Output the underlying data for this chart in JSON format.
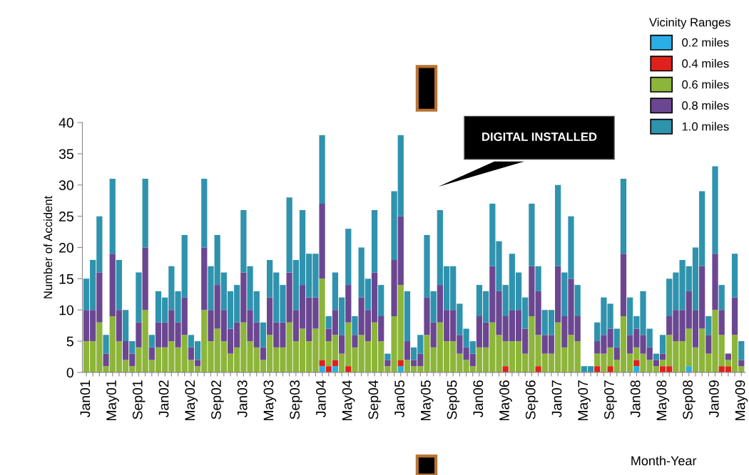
{
  "chart_data": {
    "type": "bar",
    "stacked": true,
    "categories": [
      "Jan01",
      null,
      null,
      null,
      "May01",
      null,
      null,
      null,
      "Sep01",
      null,
      null,
      null,
      "Jan02",
      null,
      null,
      null,
      "May02",
      null,
      null,
      null,
      "Sep02",
      null,
      null,
      null,
      "Jan03",
      null,
      null,
      null,
      "May03",
      null,
      null,
      null,
      "Sep03",
      null,
      null,
      null,
      "Jan04",
      null,
      null,
      null,
      "May04",
      null,
      null,
      null,
      "Sep04",
      null,
      null,
      null,
      "Jan05",
      null,
      null,
      null,
      "May05",
      null,
      null,
      null,
      "Sep05",
      null,
      null,
      null,
      "Jan06",
      null,
      null,
      null,
      "May06",
      null,
      null,
      null,
      "Sep06",
      null,
      null,
      null,
      "Jan07",
      null,
      null,
      null,
      "May07",
      null,
      null,
      null,
      "Sep07",
      null,
      null,
      null,
      "Jan08",
      null,
      null,
      null,
      "May08",
      null,
      null,
      null,
      "Sep08",
      null,
      null,
      null,
      "Jan09",
      null,
      null,
      null,
      "May09"
    ],
    "series": [
      {
        "name": "0.2 miles",
        "color": "#29aee6",
        "values": [
          0,
          0,
          0,
          0,
          0,
          0,
          0,
          0,
          0,
          0,
          0,
          0,
          0,
          0,
          0,
          0,
          0,
          0,
          0,
          0,
          0,
          0,
          0,
          0,
          0,
          0,
          0,
          0,
          0,
          0,
          0,
          0,
          0,
          0,
          0,
          0,
          1,
          0,
          1,
          0,
          0,
          0,
          0,
          0,
          0,
          0,
          0,
          0,
          1,
          0,
          0,
          0,
          0,
          0,
          0,
          0,
          0,
          0,
          0,
          0,
          0,
          0,
          0,
          0,
          0,
          0,
          0,
          0,
          0,
          0,
          0,
          0,
          0,
          0,
          0,
          0,
          0,
          0,
          0,
          0,
          0,
          0,
          0,
          0,
          1,
          0,
          0,
          0,
          0,
          0,
          0,
          0,
          1,
          0,
          0,
          0,
          0,
          0,
          0,
          0,
          0
        ]
      },
      {
        "name": "0.4 miles",
        "color": "#e0201c",
        "values": [
          0,
          0,
          0,
          0,
          0,
          0,
          0,
          0,
          0,
          0,
          0,
          0,
          0,
          0,
          0,
          0,
          0,
          0,
          0,
          0,
          0,
          0,
          0,
          0,
          0,
          0,
          0,
          0,
          0,
          0,
          0,
          0,
          0,
          0,
          0,
          0,
          1,
          1,
          1,
          0,
          1,
          0,
          0,
          0,
          0,
          0,
          0,
          0,
          1,
          0,
          0,
          0,
          0,
          0,
          0,
          0,
          0,
          0,
          0,
          0,
          0,
          0,
          0,
          0,
          1,
          0,
          0,
          0,
          0,
          1,
          0,
          0,
          0,
          0,
          0,
          0,
          0,
          0,
          1,
          0,
          1,
          0,
          0,
          0,
          1,
          0,
          0,
          0,
          1,
          1,
          0,
          0,
          0,
          0,
          0,
          0,
          0,
          1,
          1,
          0,
          0
        ]
      },
      {
        "name": "0.6 miles",
        "color": "#8db53a",
        "values": [
          5,
          5,
          8,
          1,
          9,
          5,
          2,
          1,
          4,
          10,
          2,
          4,
          4,
          5,
          4,
          6,
          2,
          1,
          10,
          5,
          7,
          5,
          3,
          4,
          8,
          5,
          4,
          2,
          6,
          4,
          4,
          8,
          5,
          7,
          5,
          7,
          13,
          4,
          4,
          3,
          7,
          4,
          6,
          5,
          8,
          5,
          1,
          9,
          12,
          2,
          1,
          1,
          6,
          4,
          8,
          5,
          5,
          3,
          2,
          1,
          4,
          4,
          8,
          6,
          4,
          5,
          5,
          3,
          9,
          5,
          3,
          3,
          8,
          4,
          6,
          5,
          0,
          0,
          2,
          3,
          3,
          2,
          9,
          3,
          2,
          3,
          2,
          1,
          1,
          5,
          5,
          5,
          6,
          4,
          7,
          3,
          10,
          5,
          1,
          6,
          1
        ]
      },
      {
        "name": "0.8 miles",
        "color": "#6b4791",
        "values": [
          5,
          5,
          8,
          2,
          10,
          5,
          3,
          2,
          4,
          10,
          2,
          4,
          4,
          5,
          4,
          6,
          2,
          1,
          10,
          5,
          7,
          5,
          4,
          4,
          8,
          5,
          4,
          2,
          6,
          4,
          4,
          8,
          5,
          7,
          7,
          5,
          12,
          2,
          4,
          3,
          6,
          2,
          6,
          5,
          8,
          4,
          1,
          9,
          11,
          3,
          1,
          2,
          6,
          4,
          6,
          5,
          5,
          3,
          2,
          2,
          5,
          4,
          9,
          7,
          4,
          5,
          5,
          4,
          8,
          7,
          3,
          3,
          9,
          5,
          9,
          4,
          0,
          0,
          2,
          3,
          3,
          2,
          10,
          3,
          3,
          3,
          2,
          1,
          1,
          3,
          5,
          5,
          6,
          6,
          10,
          3,
          9,
          4,
          1,
          6,
          1
        ]
      },
      {
        "name": "1.0 miles",
        "color": "#2f93ae",
        "values": [
          5,
          8,
          9,
          3,
          12,
          8,
          5,
          2,
          8,
          11,
          2,
          5,
          4,
          7,
          5,
          10,
          2,
          3,
          11,
          7,
          8,
          6,
          6,
          6,
          10,
          7,
          5,
          4,
          6,
          8,
          6,
          12,
          8,
          12,
          7,
          7,
          11,
          2,
          6,
          6,
          9,
          3,
          8,
          5,
          10,
          5,
          1,
          11,
          13,
          8,
          2,
          3,
          10,
          5,
          12,
          7,
          7,
          5,
          3,
          2,
          5,
          5,
          10,
          8,
          5,
          9,
          6,
          5,
          10,
          4,
          4,
          4,
          13,
          7,
          10,
          5,
          1,
          1,
          3,
          6,
          4,
          3,
          12,
          6,
          2,
          7,
          3,
          1,
          3,
          6,
          6,
          8,
          4,
          10,
          12,
          3,
          14,
          4,
          0,
          7,
          3
        ]
      }
    ],
    "ylabel": "Number of Accident",
    "xlabel": "Month-Year",
    "legend_title": "Vicinity Ranges",
    "ylim": [
      0,
      40
    ],
    "yticks": [
      0,
      5,
      10,
      15,
      20,
      25,
      30,
      35,
      40
    ],
    "grid": false,
    "legend": "top right",
    "annotations": [
      "DIGITAL INSTALLED"
    ]
  }
}
